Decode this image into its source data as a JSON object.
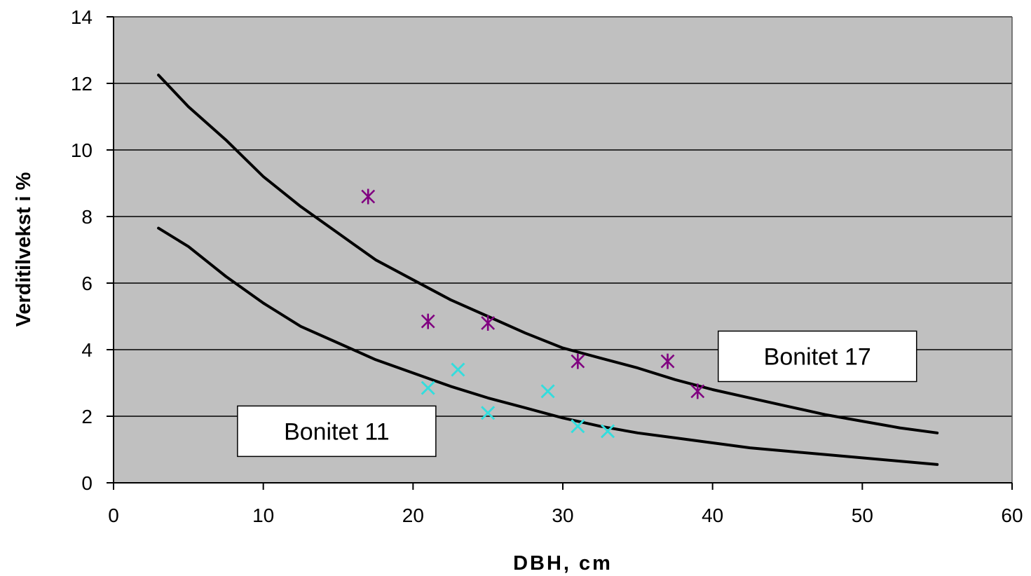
{
  "chart_data": {
    "type": "scatter",
    "title": "",
    "xlabel": "DBH, cm",
    "ylabel": "Verditilvekst i %",
    "xlim": [
      0,
      60
    ],
    "ylim": [
      0,
      14
    ],
    "xticks": [
      "0",
      "10",
      "20",
      "30",
      "40",
      "50",
      "60"
    ],
    "yticks": [
      "0",
      "2",
      "4",
      "6",
      "8",
      "10",
      "12",
      "14"
    ],
    "grid": "horizontal",
    "plot_background": "#c0c0c0",
    "series": [
      {
        "marker": "asterisk",
        "color": "#800080",
        "points": [
          {
            "x": 17,
            "y": 8.6
          },
          {
            "x": 21,
            "y": 4.85
          },
          {
            "x": 25,
            "y": 4.8
          },
          {
            "x": 31,
            "y": 3.65
          },
          {
            "x": 37,
            "y": 3.65
          },
          {
            "x": 39,
            "y": 2.75
          }
        ]
      },
      {
        "marker": "cross",
        "color": "#33dddd",
        "points": [
          {
            "x": 21,
            "y": 2.85
          },
          {
            "x": 23,
            "y": 3.4
          },
          {
            "x": 25,
            "y": 2.1
          },
          {
            "x": 29,
            "y": 2.75
          },
          {
            "x": 31,
            "y": 1.7
          },
          {
            "x": 33,
            "y": 1.55
          }
        ]
      }
    ],
    "curves": [
      {
        "color": "#000000",
        "points": [
          {
            "x": 3,
            "y": 12.25
          },
          {
            "x": 5,
            "y": 11.3
          },
          {
            "x": 7.5,
            "y": 10.3
          },
          {
            "x": 10,
            "y": 9.2
          },
          {
            "x": 12.5,
            "y": 8.3
          },
          {
            "x": 15,
            "y": 7.5
          },
          {
            "x": 17.5,
            "y": 6.7
          },
          {
            "x": 20,
            "y": 6.1
          },
          {
            "x": 22.5,
            "y": 5.5
          },
          {
            "x": 25,
            "y": 5.0
          },
          {
            "x": 27.5,
            "y": 4.5
          },
          {
            "x": 30,
            "y": 4.05
          },
          {
            "x": 32.5,
            "y": 3.75
          },
          {
            "x": 35,
            "y": 3.45
          },
          {
            "x": 37.5,
            "y": 3.1
          },
          {
            "x": 40,
            "y": 2.8
          },
          {
            "x": 42.5,
            "y": 2.55
          },
          {
            "x": 45,
            "y": 2.3
          },
          {
            "x": 47.5,
            "y": 2.05
          },
          {
            "x": 50,
            "y": 1.85
          },
          {
            "x": 52.5,
            "y": 1.65
          },
          {
            "x": 55,
            "y": 1.5
          }
        ]
      },
      {
        "color": "#000000",
        "points": [
          {
            "x": 3,
            "y": 7.65
          },
          {
            "x": 5,
            "y": 7.1
          },
          {
            "x": 7.5,
            "y": 6.2
          },
          {
            "x": 10,
            "y": 5.4
          },
          {
            "x": 12.5,
            "y": 4.7
          },
          {
            "x": 15,
            "y": 4.2
          },
          {
            "x": 17.5,
            "y": 3.7
          },
          {
            "x": 20,
            "y": 3.3
          },
          {
            "x": 22.5,
            "y": 2.9
          },
          {
            "x": 25,
            "y": 2.55
          },
          {
            "x": 27.5,
            "y": 2.25
          },
          {
            "x": 30,
            "y": 1.95
          },
          {
            "x": 32.5,
            "y": 1.7
          },
          {
            "x": 35,
            "y": 1.5
          },
          {
            "x": 37.5,
            "y": 1.35
          },
          {
            "x": 40,
            "y": 1.2
          },
          {
            "x": 42.5,
            "y": 1.05
          },
          {
            "x": 45,
            "y": 0.95
          },
          {
            "x": 47.5,
            "y": 0.85
          },
          {
            "x": 50,
            "y": 0.75
          },
          {
            "x": 52.5,
            "y": 0.65
          },
          {
            "x": 55,
            "y": 0.55
          }
        ]
      }
    ],
    "annotations": [
      {
        "text": "Bonitet 17",
        "x": 47.0,
        "y": 3.8
      },
      {
        "text": "Bonitet 11",
        "x": 14.9,
        "y": 1.55
      }
    ]
  }
}
